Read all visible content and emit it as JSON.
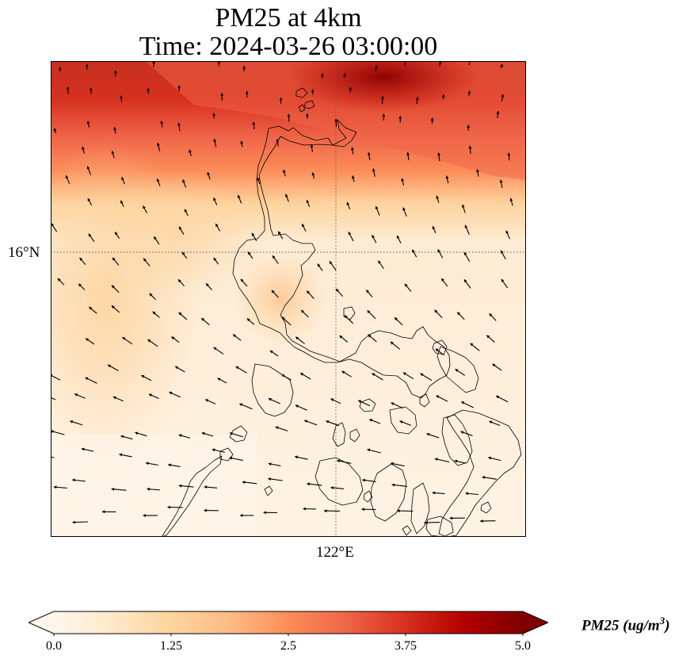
{
  "title": {
    "line1": "PM25 at 4km",
    "line2": "Time: 2024-03-26 03:00:00"
  },
  "map": {
    "projection": "lat-lon",
    "gridlines": "dotted",
    "lat_label": "16°N",
    "lon_label": "122°E",
    "field": "PM25 concentration",
    "wind_vectors": true,
    "coastlines": true,
    "high_concentration_region": "north edge of map",
    "colormap": [
      "#fff7ec",
      "#fee8c8",
      "#fdd49e",
      "#fdbb84",
      "#fc8d59",
      "#ef6548",
      "#d7301f",
      "#b30000",
      "#7f0000"
    ]
  },
  "colorbar": {
    "ticks": [
      "0.0",
      "1.25",
      "2.5",
      "3.75",
      "5.0"
    ],
    "label_main": "PM25 (ug/m",
    "label_sup": "3",
    "label_end": ")",
    "extend": "both",
    "range": [
      0.0,
      5.0
    ]
  }
}
